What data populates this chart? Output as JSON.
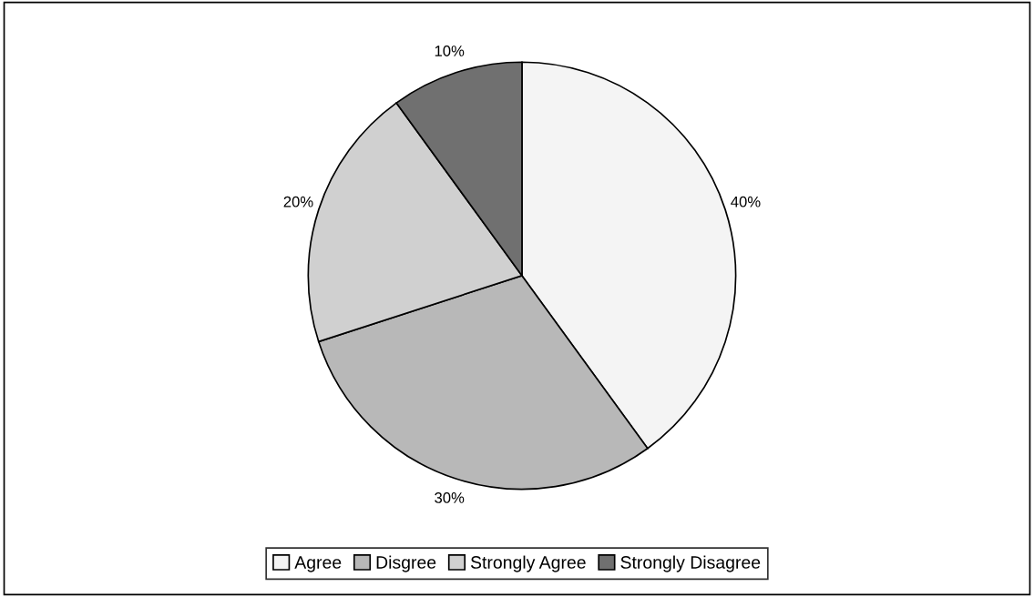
{
  "chart_data": {
    "type": "pie",
    "categories": [
      "Agree",
      "Disgree",
      "Strongly Agree",
      "Strongly Disagree"
    ],
    "values": [
      40,
      30,
      20,
      10
    ],
    "value_labels": [
      "40%",
      "30%",
      "20%",
      "10%"
    ],
    "colors": [
      "#f4f4f4",
      "#b8b8b8",
      "#d0d0d0",
      "#707070"
    ],
    "legend": "bottom"
  }
}
